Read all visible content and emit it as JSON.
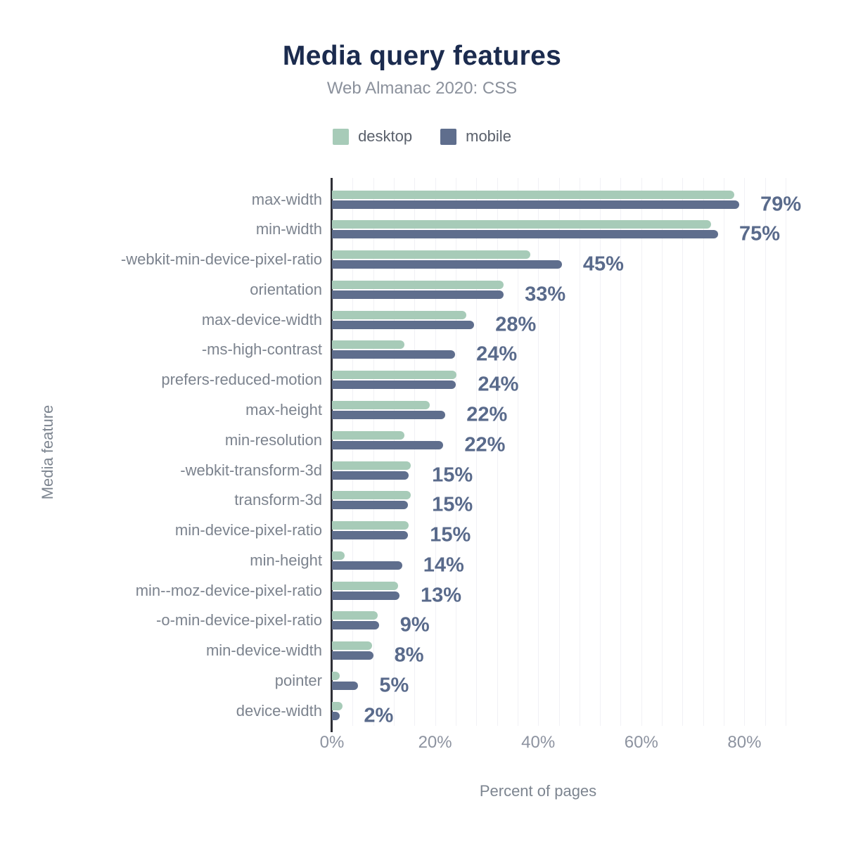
{
  "page": {
    "background": "#ffffff"
  },
  "colors": {
    "title": "#1b2b4e",
    "subtitle": "#8b919c",
    "axis_line": "#2e2f36",
    "gridline": "#f1f1f5",
    "category_label": "#7c838e",
    "value_label": "#596a8b",
    "desktop": "#a7cbb8",
    "mobile": "#5f6e8d"
  },
  "chart_data": {
    "type": "bar",
    "orientation": "horizontal",
    "title": "Media query features",
    "subtitle": "Web Almanac 2020: CSS",
    "xlabel": "Percent of pages",
    "ylabel": "Media feature",
    "xlim": [
      0,
      88
    ],
    "xticks": [
      0,
      20,
      40,
      60,
      80
    ],
    "xtick_labels": [
      "0%",
      "20%",
      "40%",
      "60%",
      "80%"
    ],
    "grid": {
      "show": true,
      "step_pct": 4
    },
    "legend_position": "top",
    "categories": [
      "max-width",
      "min-width",
      "-webkit-min-device-pixel-ratio",
      "orientation",
      "max-device-width",
      "-ms-high-contrast",
      "prefers-reduced-motion",
      "max-height",
      "min-resolution",
      "-webkit-transform-3d",
      "transform-3d",
      "min-device-pixel-ratio",
      "min-height",
      "min--moz-device-pixel-ratio",
      "-o-min-device-pixel-ratio",
      "min-device-width",
      "pointer",
      "device-width"
    ],
    "series": [
      {
        "name": "desktop",
        "color": "#a7cbb8",
        "values": [
          78.0,
          73.5,
          38.5,
          33.3,
          26.0,
          14.1,
          24.2,
          19.0,
          14.1,
          15.3,
          15.3,
          14.9,
          2.5,
          12.8,
          8.9,
          7.8,
          1.5,
          2.1
        ]
      },
      {
        "name": "mobile",
        "color": "#5f6e8d",
        "values": [
          79.0,
          74.9,
          44.6,
          33.3,
          27.6,
          23.9,
          24.0,
          22.0,
          21.6,
          14.9,
          14.8,
          14.8,
          13.6,
          13.1,
          9.1,
          8.0,
          5.1,
          1.5
        ]
      }
    ],
    "value_labels": [
      "79%",
      "75%",
      "45%",
      "33%",
      "28%",
      "24%",
      "24%",
      "22%",
      "22%",
      "15%",
      "15%",
      "15%",
      "14%",
      "13%",
      "9%",
      "8%",
      "5%",
      "2%"
    ],
    "value_label_series": "mobile"
  }
}
